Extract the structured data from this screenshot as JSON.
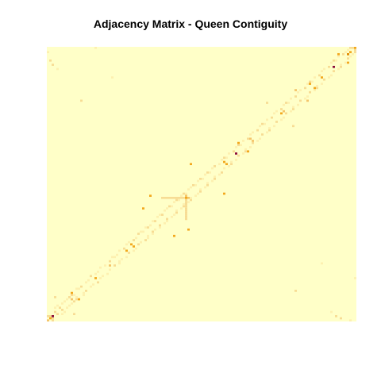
{
  "chart_data": {
    "type": "heatmap",
    "title": "Adjacency Matrix - Queen Contiguity",
    "xlabel": "",
    "ylabel": "",
    "n": 130,
    "axes_shown": false,
    "grid": false,
    "legend": "none",
    "background_value": 0,
    "color_scale": [
      "#FFFFC8",
      "#FDF0B0",
      "#F7DC94",
      "#F4C46A",
      "#F2A81E",
      "#E08A00",
      "#B0392A",
      "#8B0A3A"
    ],
    "value_range": [
      0,
      1
    ],
    "cells": [
      [
        1,
        2,
        0.3
      ],
      [
        2,
        1,
        0.3
      ],
      [
        0,
        2,
        0.35
      ],
      [
        2,
        0,
        0.35
      ],
      [
        3,
        4,
        0.3
      ],
      [
        4,
        3,
        0.3
      ],
      [
        2,
        2,
        1.0
      ],
      [
        1,
        1,
        0.5
      ],
      [
        0,
        0,
        0.45
      ],
      [
        5,
        6,
        0.25
      ],
      [
        6,
        5,
        0.25
      ],
      [
        4,
        7,
        0.2
      ],
      [
        7,
        4,
        0.2
      ],
      [
        6,
        8,
        0.2
      ],
      [
        8,
        6,
        0.2
      ],
      [
        3,
        6,
        0.2
      ],
      [
        6,
        3,
        0.2
      ],
      [
        7,
        9,
        0.2
      ],
      [
        9,
        7,
        0.2
      ],
      [
        9,
        11,
        0.25
      ],
      [
        11,
        9,
        0.25
      ],
      [
        8,
        10,
        0.2
      ],
      [
        10,
        8,
        0.2
      ],
      [
        10,
        12,
        0.3
      ],
      [
        12,
        10,
        0.3
      ],
      [
        10,
        10,
        0.45
      ],
      [
        11,
        12,
        0.2
      ],
      [
        12,
        11,
        0.2
      ],
      [
        12,
        15,
        0.2
      ],
      [
        15,
        12,
        0.2
      ],
      [
        13,
        15,
        0.2
      ],
      [
        15,
        13,
        0.2
      ],
      [
        14,
        16,
        0.25
      ],
      [
        16,
        14,
        0.25
      ],
      [
        16,
        18,
        0.2
      ],
      [
        18,
        16,
        0.2
      ],
      [
        17,
        19,
        0.2
      ],
      [
        19,
        17,
        0.2
      ],
      [
        18,
        21,
        0.25
      ],
      [
        21,
        18,
        0.25
      ],
      [
        20,
        22,
        0.2
      ],
      [
        22,
        20,
        0.2
      ],
      [
        21,
        23,
        0.2
      ],
      [
        23,
        21,
        0.2
      ],
      [
        22,
        25,
        0.2
      ],
      [
        25,
        22,
        0.2
      ],
      [
        24,
        26,
        0.2
      ],
      [
        26,
        24,
        0.2
      ],
      [
        26,
        28,
        0.25
      ],
      [
        28,
        26,
        0.25
      ],
      [
        26,
        26,
        0.45
      ],
      [
        27,
        30,
        0.2
      ],
      [
        30,
        27,
        0.2
      ],
      [
        28,
        30,
        0.2
      ],
      [
        30,
        28,
        0.2
      ],
      [
        29,
        31,
        0.2
      ],
      [
        31,
        29,
        0.2
      ],
      [
        30,
        33,
        0.2
      ],
      [
        33,
        30,
        0.2
      ],
      [
        32,
        34,
        0.25
      ],
      [
        34,
        32,
        0.25
      ],
      [
        33,
        36,
        0.2
      ],
      [
        36,
        33,
        0.2
      ],
      [
        34,
        37,
        0.2
      ],
      [
        37,
        34,
        0.2
      ],
      [
        36,
        38,
        0.3
      ],
      [
        38,
        36,
        0.3
      ],
      [
        37,
        39,
        0.2
      ],
      [
        39,
        37,
        0.2
      ],
      [
        38,
        41,
        0.25
      ],
      [
        41,
        38,
        0.25
      ],
      [
        39,
        42,
        0.2
      ],
      [
        42,
        39,
        0.2
      ],
      [
        40,
        42,
        0.2
      ],
      [
        42,
        40,
        0.2
      ],
      [
        41,
        44,
        0.2
      ],
      [
        44,
        41,
        0.2
      ],
      [
        42,
        44,
        0.25
      ],
      [
        44,
        42,
        0.25
      ],
      [
        43,
        45,
        0.2
      ],
      [
        45,
        43,
        0.2
      ],
      [
        44,
        47,
        0.2
      ],
      [
        47,
        44,
        0.2
      ],
      [
        45,
        47,
        0.3
      ],
      [
        47,
        45,
        0.3
      ],
      [
        46,
        49,
        0.2
      ],
      [
        49,
        46,
        0.2
      ],
      [
        47,
        50,
        0.2
      ],
      [
        50,
        47,
        0.2
      ],
      [
        48,
        50,
        0.25
      ],
      [
        50,
        48,
        0.25
      ],
      [
        49,
        52,
        0.2
      ],
      [
        52,
        49,
        0.2
      ],
      [
        50,
        53,
        0.2
      ],
      [
        53,
        50,
        0.2
      ],
      [
        51,
        54,
        0.25
      ],
      [
        54,
        51,
        0.25
      ],
      [
        52,
        54,
        0.2
      ],
      [
        54,
        52,
        0.2
      ],
      [
        53,
        56,
        0.2
      ],
      [
        56,
        53,
        0.2
      ],
      [
        54,
        57,
        0.3
      ],
      [
        57,
        54,
        0.3
      ],
      [
        55,
        57,
        0.2
      ],
      [
        57,
        55,
        0.2
      ],
      [
        56,
        59,
        0.2
      ],
      [
        59,
        56,
        0.2
      ],
      [
        57,
        60,
        0.25
      ],
      [
        60,
        57,
        0.25
      ],
      [
        58,
        60,
        0.2
      ],
      [
        60,
        58,
        0.2
      ],
      [
        48,
        58,
        0.3
      ],
      [
        58,
        48,
        0.3
      ],
      [
        49,
        58,
        0.3
      ],
      [
        58,
        49,
        0.3
      ],
      [
        50,
        58,
        0.3
      ],
      [
        58,
        50,
        0.3
      ],
      [
        51,
        58,
        0.3
      ],
      [
        58,
        51,
        0.3
      ],
      [
        52,
        58,
        0.3
      ],
      [
        58,
        52,
        0.3
      ],
      [
        53,
        58,
        0.3
      ],
      [
        58,
        53,
        0.3
      ],
      [
        54,
        58,
        0.3
      ],
      [
        58,
        54,
        0.3
      ],
      [
        55,
        58,
        0.3
      ],
      [
        58,
        55,
        0.3
      ],
      [
        56,
        58,
        0.3
      ],
      [
        58,
        56,
        0.3
      ],
      [
        57,
        58,
        0.3
      ],
      [
        58,
        57,
        0.3
      ],
      [
        58,
        58,
        0.6
      ],
      [
        59,
        62,
        0.2
      ],
      [
        62,
        59,
        0.2
      ],
      [
        60,
        63,
        0.2
      ],
      [
        63,
        60,
        0.2
      ],
      [
        61,
        64,
        0.25
      ],
      [
        64,
        61,
        0.25
      ],
      [
        62,
        64,
        0.2
      ],
      [
        64,
        62,
        0.2
      ],
      [
        63,
        66,
        0.2
      ],
      [
        66,
        63,
        0.2
      ],
      [
        64,
        67,
        0.3
      ],
      [
        67,
        64,
        0.3
      ],
      [
        65,
        67,
        0.2
      ],
      [
        67,
        65,
        0.2
      ],
      [
        66,
        69,
        0.2
      ],
      [
        69,
        66,
        0.2
      ],
      [
        67,
        70,
        0.25
      ],
      [
        70,
        67,
        0.25
      ],
      [
        68,
        70,
        0.2
      ],
      [
        70,
        68,
        0.2
      ],
      [
        69,
        72,
        0.2
      ],
      [
        72,
        69,
        0.2
      ],
      [
        70,
        73,
        0.3
      ],
      [
        73,
        70,
        0.3
      ],
      [
        72,
        74,
        0.2
      ],
      [
        74,
        72,
        0.2
      ],
      [
        73,
        76,
        0.2
      ],
      [
        76,
        73,
        0.2
      ],
      [
        74,
        77,
        0.25
      ],
      [
        77,
        74,
        0.25
      ],
      [
        75,
        77,
        0.2
      ],
      [
        77,
        75,
        0.2
      ],
      [
        76,
        79,
        0.2
      ],
      [
        79,
        76,
        0.2
      ],
      [
        78,
        80,
        0.25
      ],
      [
        80,
        78,
        0.25
      ],
      [
        79,
        82,
        0.2
      ],
      [
        82,
        79,
        0.2
      ],
      [
        80,
        83,
        0.3
      ],
      [
        83,
        80,
        0.3
      ],
      [
        81,
        83,
        0.2
      ],
      [
        83,
        81,
        0.2
      ],
      [
        82,
        85,
        0.2
      ],
      [
        85,
        82,
        0.2
      ],
      [
        84,
        86,
        0.25
      ],
      [
        86,
        84,
        0.25
      ],
      [
        85,
        88,
        0.2
      ],
      [
        88,
        85,
        0.2
      ],
      [
        86,
        89,
        0.2
      ],
      [
        89,
        86,
        0.2
      ],
      [
        88,
        90,
        0.25
      ],
      [
        90,
        88,
        0.25
      ],
      [
        89,
        92,
        0.2
      ],
      [
        92,
        89,
        0.2
      ],
      [
        90,
        93,
        0.3
      ],
      [
        93,
        90,
        0.3
      ],
      [
        91,
        93,
        0.2
      ],
      [
        93,
        91,
        0.2
      ],
      [
        92,
        95,
        0.2
      ],
      [
        95,
        92,
        0.2
      ],
      [
        94,
        96,
        0.25
      ],
      [
        96,
        94,
        0.25
      ],
      [
        95,
        98,
        0.2
      ],
      [
        98,
        95,
        0.2
      ],
      [
        96,
        99,
        0.2
      ],
      [
        99,
        96,
        0.2
      ],
      [
        98,
        100,
        0.3
      ],
      [
        100,
        98,
        0.3
      ],
      [
        99,
        102,
        0.2
      ],
      [
        102,
        99,
        0.2
      ],
      [
        100,
        103,
        0.25
      ],
      [
        103,
        100,
        0.25
      ],
      [
        101,
        103,
        0.2
      ],
      [
        103,
        101,
        0.2
      ],
      [
        102,
        105,
        0.2
      ],
      [
        105,
        102,
        0.2
      ],
      [
        104,
        106,
        0.25
      ],
      [
        106,
        104,
        0.25
      ],
      [
        105,
        108,
        0.2
      ],
      [
        108,
        105,
        0.2
      ],
      [
        106,
        109,
        0.2
      ],
      [
        109,
        106,
        0.2
      ],
      [
        108,
        110,
        0.3
      ],
      [
        110,
        108,
        0.3
      ],
      [
        109,
        112,
        0.2
      ],
      [
        112,
        109,
        0.2
      ],
      [
        110,
        113,
        0.25
      ],
      [
        113,
        110,
        0.25
      ],
      [
        111,
        113,
        0.2
      ],
      [
        113,
        111,
        0.2
      ],
      [
        112,
        115,
        0.2
      ],
      [
        115,
        112,
        0.2
      ],
      [
        114,
        116,
        0.25
      ],
      [
        116,
        114,
        0.25
      ],
      [
        115,
        118,
        0.2
      ],
      [
        118,
        115,
        0.2
      ],
      [
        116,
        119,
        0.2
      ],
      [
        119,
        116,
        0.2
      ],
      [
        118,
        120,
        0.3
      ],
      [
        120,
        118,
        0.3
      ],
      [
        119,
        122,
        0.2
      ],
      [
        122,
        119,
        0.2
      ],
      [
        120,
        123,
        0.25
      ],
      [
        123,
        120,
        0.25
      ],
      [
        121,
        123,
        0.2
      ],
      [
        123,
        121,
        0.2
      ],
      [
        122,
        125,
        0.2
      ],
      [
        125,
        122,
        0.2
      ],
      [
        124,
        126,
        0.25
      ],
      [
        126,
        124,
        0.25
      ],
      [
        125,
        127,
        0.2
      ],
      [
        127,
        125,
        0.2
      ],
      [
        126,
        128,
        0.2
      ],
      [
        128,
        126,
        0.2
      ],
      [
        127,
        129,
        0.25
      ],
      [
        129,
        127,
        0.25
      ],
      [
        128,
        129,
        0.3
      ],
      [
        129,
        128,
        0.3
      ],
      [
        79,
        79,
        1.0
      ],
      [
        120,
        120,
        1.0
      ],
      [
        10,
        13,
        0.6
      ],
      [
        13,
        10,
        0.6
      ],
      [
        126,
        126,
        0.7
      ],
      [
        127,
        127,
        0.6
      ],
      [
        129,
        129,
        0.55
      ],
      [
        58,
        59,
        0.4
      ],
      [
        59,
        58,
        0.4
      ],
      [
        74,
        75,
        0.5
      ],
      [
        75,
        74,
        0.5
      ],
      [
        85,
        86,
        0.4
      ],
      [
        86,
        85,
        0.4
      ],
      [
        98,
        98,
        0.55
      ],
      [
        99,
        99,
        0.45
      ],
      [
        115,
        115,
        0.55
      ],
      [
        110,
        112,
        0.5
      ],
      [
        112,
        110,
        0.5
      ],
      [
        33,
        33,
        0.55
      ],
      [
        35,
        36,
        0.5
      ],
      [
        36,
        35,
        0.5
      ],
      [
        20,
        20,
        0.5
      ],
      [
        40,
        53,
        0.5
      ],
      [
        53,
        40,
        0.5
      ],
      [
        43,
        59,
        0.5
      ],
      [
        59,
        43,
        0.5
      ],
      [
        60,
        74,
        0.5
      ],
      [
        74,
        60,
        0.5
      ],
      [
        122,
        126,
        0.5
      ],
      [
        126,
        122,
        0.5
      ],
      [
        104,
        109,
        0.45
      ],
      [
        109,
        104,
        0.45
      ],
      [
        14,
        104,
        0.3
      ],
      [
        104,
        14,
        0.3
      ],
      [
        3,
        11,
        0.3
      ],
      [
        11,
        3,
        0.3
      ],
      [
        80,
        84,
        0.5
      ],
      [
        84,
        80,
        0.5
      ],
      [
        2,
        121,
        0.3
      ],
      [
        121,
        2,
        0.3
      ],
      [
        0,
        127,
        0.2
      ],
      [
        127,
        0,
        0.2
      ],
      [
        4,
        119,
        0.2
      ],
      [
        119,
        4,
        0.2
      ],
      [
        20,
        129,
        0.2
      ],
      [
        129,
        20,
        0.2
      ],
      [
        1,
        123,
        0.25
      ],
      [
        123,
        1,
        0.25
      ],
      [
        27,
        115,
        0.2
      ],
      [
        115,
        27,
        0.2
      ],
      [
        92,
        103,
        0.25
      ],
      [
        103,
        92,
        0.25
      ]
    ]
  }
}
